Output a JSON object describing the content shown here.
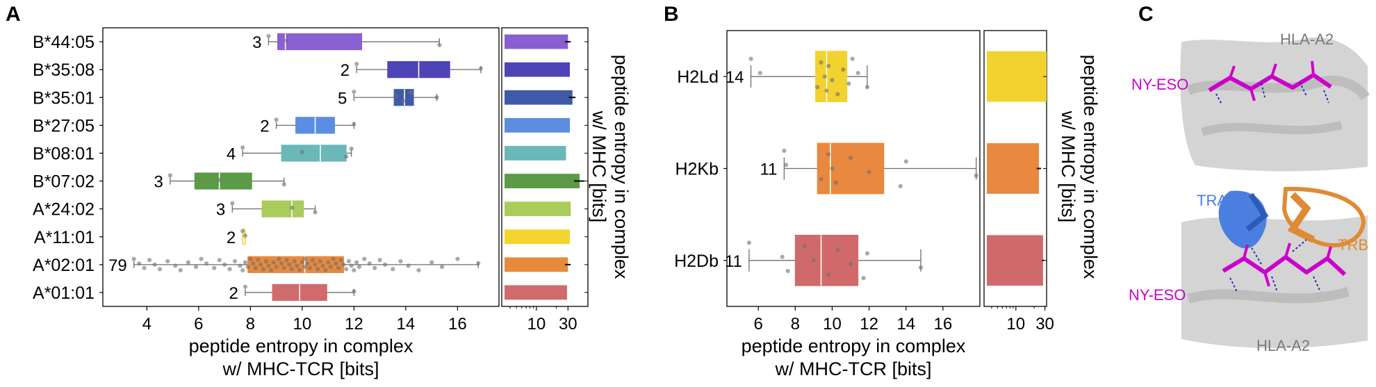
{
  "figure": {
    "panels": {
      "A": {
        "letter": "A",
        "xlabel_line1": "peptide entropy in complex",
        "xlabel_line2": "w/ MHC-TCR [bits]",
        "side_label_line1": "peptide entropy in complex",
        "side_label_line2": "w/ MHC [bits]",
        "side_ticks": [
          "10",
          "30"
        ],
        "x_ticks": [
          "4",
          "6",
          "8",
          "10",
          "12",
          "14",
          "16"
        ]
      },
      "B": {
        "letter": "B",
        "xlabel_line1": "peptide entropy in complex",
        "xlabel_line2": "w/ MHC-TCR [bits]",
        "side_label_line1": "peptide entropy in complex",
        "side_label_line2": "w/ MHC [bits]",
        "side_ticks": [
          "10",
          "30"
        ],
        "x_ticks": [
          "6",
          "8",
          "10",
          "12",
          "14",
          "16"
        ]
      },
      "C": {
        "letter": "C",
        "top_labels": [
          "HLA-A2",
          "NY-ESO"
        ],
        "bottom_labels": [
          "TRA",
          "TRB",
          "NY-ESO",
          "HLA-A2"
        ],
        "colors": {
          "peptide": "#cc00cc",
          "tra": "#4a7fe0",
          "trb": "#e08a35",
          "mhc": "#c8c8c8",
          "hbond": "#1f2fb0"
        }
      }
    }
  },
  "chart_data": [
    {
      "type": "box",
      "panel": "A",
      "xlabel": "peptide entropy in complex w/ MHC-TCR [bits]",
      "xlim": [
        2.3,
        17.6
      ],
      "categories": [
        "B*44:05",
        "B*35:08",
        "B*35:01",
        "B*27:05",
        "B*08:01",
        "B*07:02",
        "A*24:02",
        "A*11:01",
        "A*02:01",
        "A*01:01"
      ],
      "series": [
        {
          "category": "B*44:05",
          "n": "3",
          "color": "#8a5fd1",
          "min": 8.7,
          "q1": 9.05,
          "median": 9.35,
          "q3": 12.3,
          "max": 15.3,
          "points": [
            8.7,
            9.4,
            15.3
          ]
        },
        {
          "category": "B*35:08",
          "n": "2",
          "color": "#4d45b6",
          "min": 12.1,
          "q1": 13.3,
          "median": 14.5,
          "q3": 15.7,
          "max": 16.9,
          "points": [
            12.1,
            16.9
          ]
        },
        {
          "category": "B*35:01",
          "n": "5",
          "color": "#3f5aa8",
          "min": 12.0,
          "q1": 13.55,
          "median": 13.95,
          "q3": 14.3,
          "max": 15.2,
          "points": [
            12.0,
            13.6,
            13.9,
            14.2,
            15.2
          ]
        },
        {
          "category": "B*27:05",
          "n": "2",
          "color": "#5b8ee0",
          "min": 9.0,
          "q1": 9.75,
          "median": 10.5,
          "q3": 11.25,
          "max": 12.0,
          "points": [
            9.0,
            12.0
          ]
        },
        {
          "category": "B*08:01",
          "n": "4",
          "color": "#6ab8b8",
          "min": 7.7,
          "q1": 9.2,
          "median": 10.7,
          "q3": 11.7,
          "max": 11.9,
          "points": [
            7.7,
            10.0,
            11.7,
            11.9
          ]
        },
        {
          "category": "B*07:02",
          "n": "3",
          "color": "#5c9a47",
          "min": 4.9,
          "q1": 5.85,
          "median": 6.8,
          "q3": 8.05,
          "max": 9.3,
          "points": [
            4.9,
            6.8,
            9.3
          ]
        },
        {
          "category": "A*24:02",
          "n": "3",
          "color": "#a9cc5a",
          "min": 7.3,
          "q1": 8.45,
          "median": 9.6,
          "q3": 10.05,
          "max": 10.5,
          "points": [
            7.3,
            9.6,
            10.5
          ]
        },
        {
          "category": "A*11:01",
          "n": "2",
          "color": "#f2d52f",
          "min": 7.7,
          "q1": 7.7,
          "median": 7.75,
          "q3": 7.8,
          "max": 7.8,
          "points": [
            7.7,
            7.8
          ]
        },
        {
          "category": "A*02:01",
          "n": "79",
          "color": "#e88a3c",
          "min": 3.5,
          "q1": 7.9,
          "median": 10.1,
          "q3": 11.6,
          "max": 16.8,
          "points": [
            3.5,
            3.7,
            3.9,
            4.1,
            4.3,
            4.5,
            4.8,
            5.1,
            5.3,
            5.6,
            5.9,
            6.1,
            6.3,
            6.6,
            6.8,
            7.0,
            7.2,
            7.4,
            7.6,
            7.7,
            7.8,
            7.9,
            8.0,
            8.1,
            8.2,
            8.3,
            8.4,
            8.5,
            8.6,
            8.7,
            8.8,
            8.9,
            9.0,
            9.1,
            9.2,
            9.3,
            9.4,
            9.5,
            9.6,
            9.7,
            9.8,
            9.9,
            10.0,
            10.1,
            10.1,
            10.2,
            10.3,
            10.4,
            10.5,
            10.6,
            10.7,
            10.8,
            10.9,
            11.0,
            11.1,
            11.2,
            11.3,
            11.4,
            11.5,
            11.6,
            11.7,
            11.8,
            11.9,
            12.0,
            12.1,
            12.2,
            12.4,
            12.6,
            12.8,
            13.0,
            13.2,
            13.5,
            13.8,
            14.1,
            14.5,
            15.0,
            15.4,
            16.0,
            16.8
          ]
        },
        {
          "category": "A*01:01",
          "n": "2",
          "color": "#d16a6a",
          "min": 7.8,
          "q1": 8.85,
          "median": 9.9,
          "q3": 10.95,
          "max": 12.0,
          "points": [
            7.8,
            12.0
          ]
        }
      ],
      "side_bars": {
        "xlabel": "peptide entropy in complex w/ MHC [bits]",
        "scale": "log",
        "xlim": [
          3,
          60
        ],
        "values": [
          30,
          32,
          35,
          32,
          28,
          45,
          33,
          32,
          30,
          29
        ],
        "errors": [
          3,
          0,
          4,
          0,
          0,
          8,
          0,
          0,
          3,
          0
        ]
      }
    },
    {
      "type": "box",
      "panel": "B",
      "xlabel": "peptide entropy in complex w/ MHC-TCR [bits]",
      "xlim": [
        4.3,
        18.0
      ],
      "categories": [
        "H2Ld",
        "H2Kb",
        "H2Db"
      ],
      "series": [
        {
          "category": "H2Ld",
          "n": "14",
          "color": "#f2d22f",
          "min": 5.6,
          "q1": 9.1,
          "median": 9.7,
          "q3": 10.8,
          "max": 11.9,
          "points": [
            5.6,
            6.1,
            9.2,
            9.4,
            9.6,
            9.7,
            9.8,
            10.0,
            10.3,
            10.6,
            10.9,
            11.1,
            11.4,
            11.9
          ]
        },
        {
          "category": "H2Kb",
          "n": "11",
          "color": "#e8893f",
          "min": 7.4,
          "q1": 9.2,
          "median": 9.9,
          "q3": 12.8,
          "max": 17.8,
          "points": [
            7.4,
            7.5,
            9.4,
            9.8,
            10.0,
            10.2,
            11.0,
            12.0,
            13.7,
            14.0,
            17.8
          ]
        },
        {
          "category": "H2Db",
          "n": "11",
          "color": "#d06a6a",
          "min": 5.5,
          "q1": 8.0,
          "median": 9.4,
          "q3": 11.4,
          "max": 14.8,
          "points": [
            5.5,
            7.3,
            7.6,
            8.5,
            9.0,
            9.8,
            10.3,
            11.0,
            11.7,
            11.9,
            14.8
          ]
        }
      ],
      "side_bars": {
        "xlabel": "peptide entropy in complex w/ MHC [bits]",
        "scale": "log",
        "xlim": [
          3,
          32
        ],
        "values": [
          32,
          24,
          28
        ],
        "errors": [
          0,
          2,
          1
        ]
      }
    }
  ]
}
